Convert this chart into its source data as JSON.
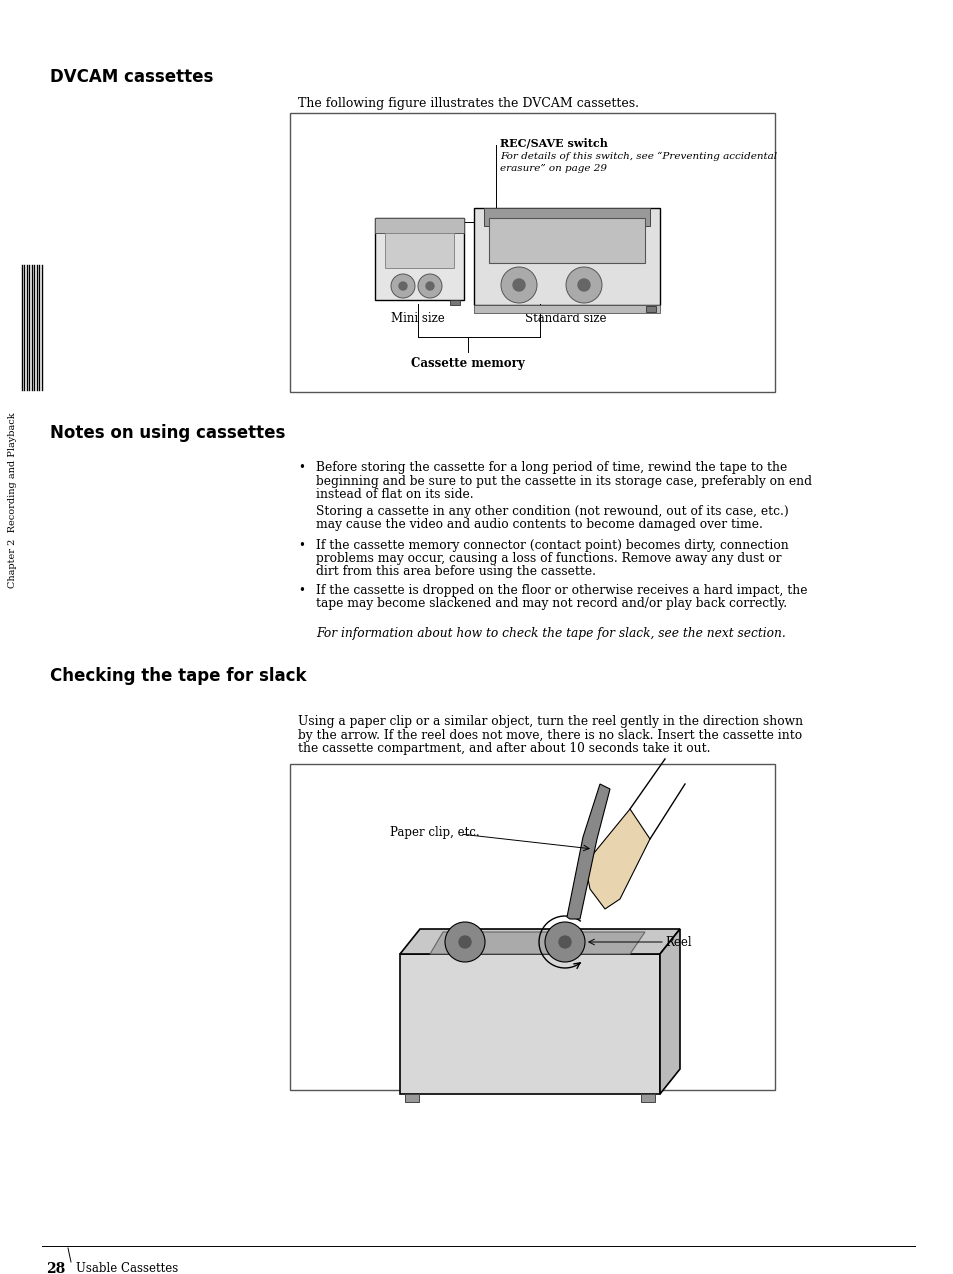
{
  "page_bg": "#ffffff",
  "title1": "DVCAM cassettes",
  "title2": "Notes on using cassettes",
  "title3": "Checking the tape for slack",
  "intro_text": "The following figure illustrates the DVCAM cassettes.",
  "rec_save_label": "REC/SAVE switch",
  "rec_save_detail1": "For details of this switch, see “Preventing accidental",
  "rec_save_detail2": "erasure” on page 29",
  "mini_size_label": "Mini size",
  "standard_size_label": "Standard size",
  "cassette_memory_label": "Cassette memory",
  "bullet1_line1": "Before storing the cassette for a long period of time, rewind the tape to the",
  "bullet1_line2": "beginning and be sure to put the cassette in its storage case, preferably on end",
  "bullet1_line3": "instead of flat on its side.",
  "bullet1_line4": "Storing a cassette in any other condition (not rewound, out of its case, etc.)",
  "bullet1_line5": "may cause the video and audio contents to become damaged over time.",
  "bullet2_line1": "If the cassette memory connector (contact point) becomes dirty, connection",
  "bullet2_line2": "problems may occur, causing a loss of functions. Remove away any dust or",
  "bullet2_line3": "dirt from this area before using the cassette.",
  "bullet3_line1": "If the cassette is dropped on the floor or otherwise receives a hard impact, the",
  "bullet3_line2": "tape may become slackened and may not record and/or play back correctly.",
  "italic_note": "For information about how to check the tape for slack, see the next section.",
  "slack_intro1": "Using a paper clip or a similar object, turn the reel gently in the direction shown",
  "slack_intro2": "by the arrow. If the reel does not move, there is no slack. Insert the cassette into",
  "slack_intro3": "the cassette compartment, and after about 10 seconds take it out.",
  "paper_clip_label": "Paper clip, etc.",
  "reel_label": "Reel",
  "page_num": "28",
  "page_section": "Usable Cassettes",
  "chapter_text": "Chapter 2  Recording and Playback"
}
